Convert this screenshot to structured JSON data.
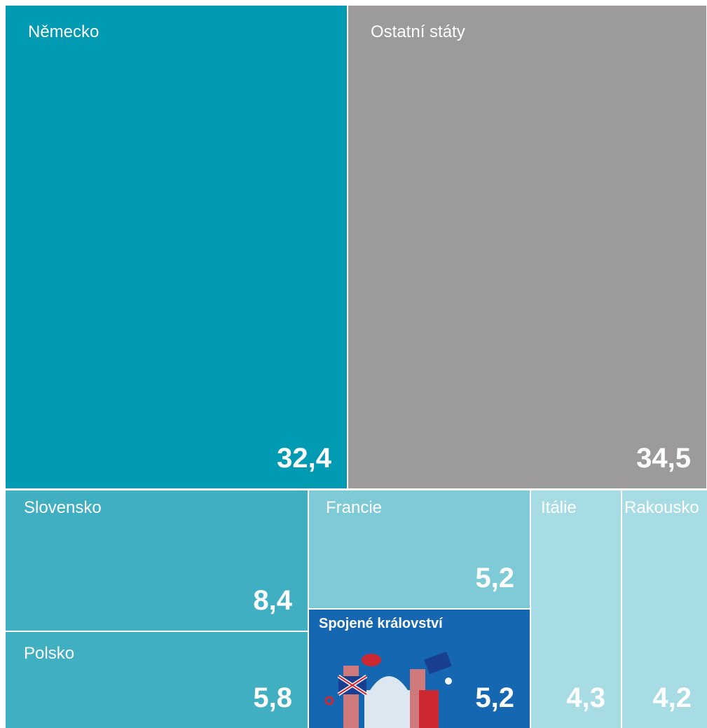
{
  "chart_data": {
    "type": "treemap",
    "categories": [
      "Německo",
      "Ostatní státy",
      "Slovensko",
      "Polsko",
      "Francie",
      "Spojené království",
      "Itálie",
      "Rakousko"
    ],
    "values": [
      32.4,
      34.5,
      8.4,
      5.8,
      5.2,
      5.2,
      4.3,
      4.2
    ],
    "value_labels": [
      "32,4",
      "34,5",
      "8,4",
      "5,8",
      "5,2",
      "5,2",
      "4,3",
      "4,2"
    ],
    "colors": [
      "#009ab2",
      "#9c9a9b",
      "#40afc2",
      "#40afc2",
      "#7fcad7",
      "#1467b0",
      "#a7dce5",
      "#a7dce5"
    ]
  }
}
